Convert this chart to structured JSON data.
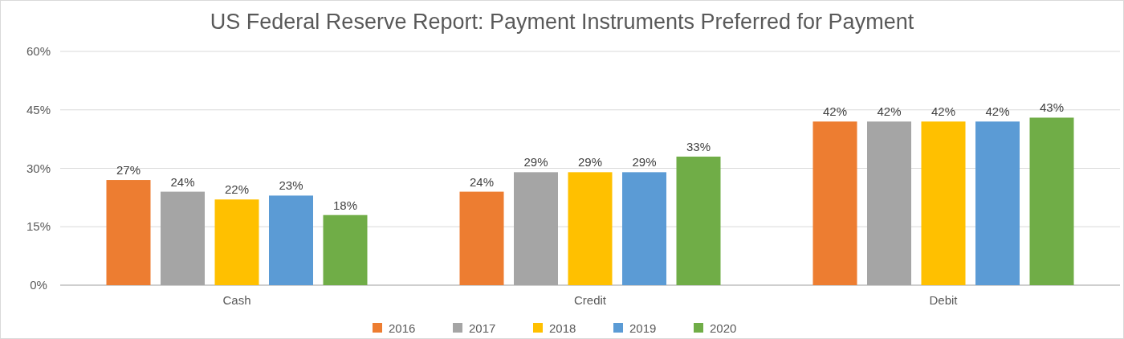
{
  "chart_data": {
    "type": "bar",
    "title": "US Federal Reserve Report: Payment Instruments Preferred for Payment",
    "categories": [
      "Cash",
      "Credit",
      "Debit"
    ],
    "series": [
      {
        "name": "2016",
        "color": "#ed7d31",
        "values": [
          27,
          24,
          42
        ],
        "value_labels": [
          "27%",
          "24%",
          "42%"
        ]
      },
      {
        "name": "2017",
        "color": "#a5a5a5",
        "values": [
          24,
          29,
          42
        ],
        "value_labels": [
          "24%",
          "29%",
          "42%"
        ]
      },
      {
        "name": "2018",
        "color": "#ffc000",
        "values": [
          22,
          29,
          42
        ],
        "value_labels": [
          "22%",
          "29%",
          "42%"
        ]
      },
      {
        "name": "2019",
        "color": "#5b9bd5",
        "values": [
          23,
          29,
          42
        ],
        "value_labels": [
          "23%",
          "29%",
          "42%"
        ]
      },
      {
        "name": "2020",
        "color": "#70ad47",
        "values": [
          18,
          33,
          43
        ],
        "value_labels": [
          "18%",
          "33%",
          "43%"
        ]
      }
    ],
    "ylim": [
      0,
      60
    ],
    "yticks": [
      {
        "value": 0,
        "label": "0%"
      },
      {
        "value": 15,
        "label": "15%"
      },
      {
        "value": 30,
        "label": "30%"
      },
      {
        "value": 45,
        "label": "45%"
      },
      {
        "value": 60,
        "label": "60%"
      }
    ],
    "grid": "y",
    "legend": "bottom"
  }
}
